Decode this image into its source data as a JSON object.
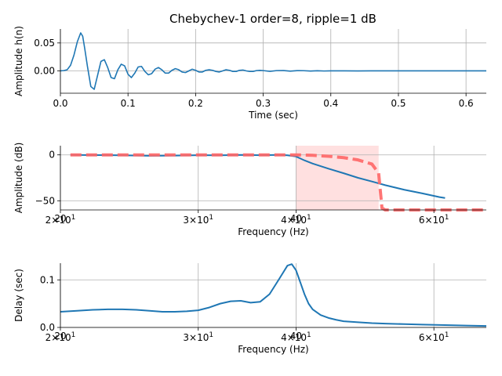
{
  "chart_data": [
    {
      "type": "line",
      "title": "Chebychev-1 order=8, ripple=1 dB",
      "xlabel": "Time (sec)",
      "ylabel": "Amplitude h(n)",
      "xlim": [
        0.0,
        0.63
      ],
      "ylim": [
        -0.04,
        0.075
      ],
      "grid": true,
      "xticks": [
        0.0,
        0.1,
        0.2,
        0.3,
        0.4,
        0.5,
        0.6
      ],
      "xtick_labels": [
        "0.0",
        "0.1",
        "0.2",
        "0.3",
        "0.4",
        "0.5",
        "0.6"
      ],
      "yticks": [
        0.0,
        0.05
      ],
      "ytick_labels": [
        "0.00",
        "0.05"
      ],
      "color": "#1f77b4",
      "series": [
        {
          "x": [
            0,
            0.005,
            0.01,
            0.015,
            0.02,
            0.025,
            0.03,
            0.033,
            0.036,
            0.04,
            0.045,
            0.05,
            0.055,
            0.06,
            0.065,
            0.07,
            0.075,
            0.08,
            0.085,
            0.09,
            0.095,
            0.1,
            0.105,
            0.11,
            0.115,
            0.12,
            0.125,
            0.13,
            0.135,
            0.14,
            0.145,
            0.15,
            0.155,
            0.16,
            0.165,
            0.17,
            0.175,
            0.18,
            0.185,
            0.19,
            0.195,
            0.2,
            0.205,
            0.21,
            0.215,
            0.22,
            0.225,
            0.23,
            0.235,
            0.24,
            0.245,
            0.25,
            0.255,
            0.26,
            0.265,
            0.27,
            0.275,
            0.28,
            0.285,
            0.29,
            0.295,
            0.3,
            0.31,
            0.32,
            0.33,
            0.34,
            0.35,
            0.36,
            0.37,
            0.38,
            0.39,
            0.4,
            0.42,
            0.44,
            0.46,
            0.48,
            0.5,
            0.55,
            0.6,
            0.63
          ],
          "y": [
            0,
            0.0005,
            0.002,
            0.01,
            0.028,
            0.052,
            0.068,
            0.062,
            0.04,
            0.008,
            -0.028,
            -0.033,
            -0.008,
            0.017,
            0.02,
            0.006,
            -0.012,
            -0.014,
            0.002,
            0.012,
            0.009,
            -0.006,
            -0.012,
            -0.004,
            0.007,
            0.008,
            -0.001,
            -0.007,
            -0.005,
            0.003,
            0.006,
            0.002,
            -0.004,
            -0.004,
            0.001,
            0.004,
            0.002,
            -0.002,
            -0.003,
            0,
            0.003,
            0.001,
            -0.002,
            -0.002,
            0.001,
            0.002,
            0.001,
            -0.001,
            -0.002,
            0,
            0.002,
            0.001,
            -0.001,
            -0.001,
            0.001,
            0.0015,
            0,
            -0.001,
            -0.001,
            0.0005,
            0.001,
            0.0005,
            -0.0008,
            0.0005,
            0.0006,
            -0.0005,
            0.0004,
            0.0003,
            -0.0003,
            0.0002,
            -0.0002,
            0.0001,
            0.0001,
            -0.0001,
            5e-05,
            0,
            0,
            0,
            0,
            0
          ]
        }
      ]
    },
    {
      "type": "line",
      "title": "",
      "xlabel": "Frequency (Hz)",
      "ylabel": "Amplitude (dB)",
      "xscale": "log",
      "xlim": [
        20,
        70
      ],
      "ylim": [
        -60,
        10
      ],
      "grid": true,
      "xticks": [
        20,
        30,
        40,
        60
      ],
      "xtick_labels": [
        "2×10",
        "3×10",
        "4×10",
        "6×10"
      ],
      "xtick_exponent": "1",
      "xtick_overlaps": [
        {
          "x": 20,
          "text": "20"
        },
        {
          "x": 40,
          "text": "40"
        }
      ],
      "yticks": [
        0,
        -50
      ],
      "ytick_labels": [
        "0",
        "−50"
      ],
      "shaded_region": {
        "x0": 40,
        "x1": 51,
        "color": "#ff9999"
      },
      "series": [
        {
          "name": "",
          "style": "solid",
          "color": "#1f77b4",
          "x": [
            20.6,
            22,
            24,
            26,
            28,
            30,
            32,
            34,
            36,
            38,
            39,
            40,
            41,
            42,
            44,
            46,
            48,
            50,
            52,
            55,
            58,
            61,
            62
          ],
          "y": [
            0,
            -0.2,
            -0.5,
            -1,
            -0.8,
            -0.3,
            -0.5,
            0,
            -0.4,
            0,
            -0.5,
            -1.8,
            -6,
            -9.5,
            -15,
            -20,
            -25,
            -29,
            -33,
            -38,
            -42,
            -46,
            -47
          ]
        },
        {
          "name": "",
          "style": "dashed",
          "color": "#ff6666",
          "x": [
            20.6,
            24,
            28,
            32,
            36,
            40,
            42,
            44,
            46,
            48,
            50,
            51,
            51.5,
            52,
            58,
            70
          ],
          "y": [
            0,
            0,
            0,
            0,
            0,
            0,
            -0.5,
            -1.5,
            -3,
            -5.5,
            -10,
            -20,
            -58,
            -60,
            -60,
            -60
          ]
        }
      ]
    },
    {
      "type": "line",
      "title": "",
      "xlabel": "Frequency (Hz)",
      "ylabel": "Delay (sec)",
      "xscale": "log",
      "xlim": [
        20,
        70
      ],
      "ylim": [
        0,
        0.135
      ],
      "grid": true,
      "xticks": [
        20,
        30,
        40,
        60
      ],
      "xtick_labels": [
        "2×10",
        "3×10",
        "4×10",
        "6×10"
      ],
      "xtick_exponent": "1",
      "xtick_overlaps": [
        {
          "x": 20,
          "text": "20"
        },
        {
          "x": 40,
          "text": "40"
        }
      ],
      "yticks": [
        0.0,
        0.1
      ],
      "ytick_labels": [
        "0.0",
        "0.1"
      ],
      "color": "#1f77b4",
      "series": [
        {
          "x": [
            20,
            21,
            22,
            23,
            24,
            25,
            26,
            27,
            28,
            29,
            30,
            31,
            32,
            33,
            34,
            35,
            36,
            37,
            38,
            38.5,
            39,
            39.5,
            40,
            40.5,
            41,
            41.5,
            42,
            43,
            44,
            45,
            46,
            48,
            50,
            52,
            55,
            58,
            62,
            66,
            70
          ],
          "y": [
            0.033,
            0.035,
            0.037,
            0.038,
            0.038,
            0.037,
            0.035,
            0.033,
            0.033,
            0.034,
            0.036,
            0.042,
            0.05,
            0.055,
            0.056,
            0.052,
            0.054,
            0.07,
            0.1,
            0.115,
            0.13,
            0.133,
            0.12,
            0.095,
            0.07,
            0.05,
            0.038,
            0.026,
            0.02,
            0.016,
            0.013,
            0.011,
            0.009,
            0.008,
            0.007,
            0.006,
            0.005,
            0.004,
            0.003
          ]
        }
      ]
    }
  ]
}
